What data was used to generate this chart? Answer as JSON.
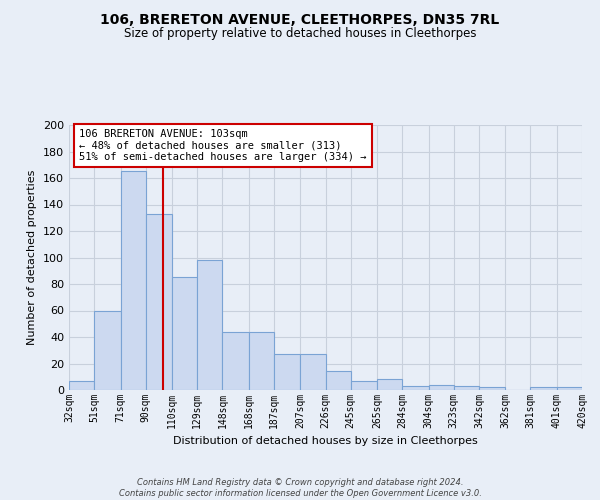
{
  "title": "106, BRERETON AVENUE, CLEETHORPES, DN35 7RL",
  "subtitle": "Size of property relative to detached houses in Cleethorpes",
  "xlabel": "Distribution of detached houses by size in Cleethorpes",
  "ylabel": "Number of detached properties",
  "bar_values": [
    7,
    60,
    165,
    133,
    85,
    98,
    44,
    44,
    27,
    27,
    14,
    7,
    8,
    3,
    4,
    3,
    2,
    0,
    2,
    2
  ],
  "bin_edges": [
    32,
    51,
    71,
    90,
    110,
    129,
    148,
    168,
    187,
    207,
    226,
    245,
    265,
    284,
    304,
    323,
    342,
    362,
    381,
    401,
    420
  ],
  "tick_labels": [
    "32sqm",
    "51sqm",
    "71sqm",
    "90sqm",
    "110sqm",
    "129sqm",
    "148sqm",
    "168sqm",
    "187sqm",
    "207sqm",
    "226sqm",
    "245sqm",
    "265sqm",
    "284sqm",
    "304sqm",
    "323sqm",
    "342sqm",
    "362sqm",
    "381sqm",
    "401sqm",
    "420sqm"
  ],
  "bar_color": "#ccd9f0",
  "bar_edge_color": "#7aa3d4",
  "grid_color": "#c8d0dc",
  "bg_color": "#e8eef7",
  "vline_x": 103,
  "vline_color": "#cc0000",
  "annotation_text": "106 BRERETON AVENUE: 103sqm\n← 48% of detached houses are smaller (313)\n51% of semi-detached houses are larger (334) →",
  "annotation_box_color": "#ffffff",
  "annotation_box_edge": "#cc0000",
  "footnote": "Contains HM Land Registry data © Crown copyright and database right 2024.\nContains public sector information licensed under the Open Government Licence v3.0.",
  "ylim": [
    0,
    200
  ],
  "yticks": [
    0,
    20,
    40,
    60,
    80,
    100,
    120,
    140,
    160,
    180,
    200
  ],
  "title_fontsize": 10,
  "subtitle_fontsize": 8.5,
  "ylabel_fontsize": 8,
  "xlabel_fontsize": 8
}
